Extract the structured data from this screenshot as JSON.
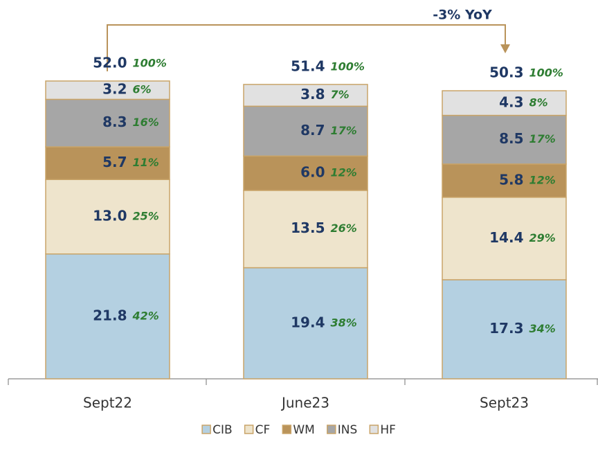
{
  "chart_data": {
    "type": "stacked_bar",
    "annotation": "-3% YoY",
    "categories": [
      "Sept22",
      "June23",
      "Sept23"
    ],
    "totals": [
      52.0,
      51.4,
      50.3
    ],
    "total_labels": [
      "52.0",
      "51.4",
      "50.3"
    ],
    "total_share_labels": [
      "100%",
      "100%",
      "100%"
    ],
    "series": [
      {
        "name": "CIB",
        "color": "#b4d0e1",
        "values": [
          21.8,
          19.4,
          17.3
        ],
        "value_labels": [
          "21.8",
          "19.4",
          "17.3"
        ],
        "share_labels": [
          "42%",
          "38%",
          "34%"
        ]
      },
      {
        "name": "CF",
        "color": "#eee4cc",
        "values": [
          13.0,
          13.5,
          14.4
        ],
        "value_labels": [
          "13.0",
          "13.5",
          "14.4"
        ],
        "share_labels": [
          "25%",
          "26%",
          "29%"
        ]
      },
      {
        "name": "WM",
        "color": "#b9935a",
        "values": [
          5.7,
          6.0,
          5.8
        ],
        "value_labels": [
          "5.7",
          "6.0",
          "5.8"
        ],
        "share_labels": [
          "11%",
          "12%",
          "12%"
        ]
      },
      {
        "name": "INS",
        "color": "#a6a6a6",
        "values": [
          8.3,
          8.7,
          8.5
        ],
        "value_labels": [
          "8.3",
          "8.7",
          "8.5"
        ],
        "share_labels": [
          "16%",
          "17%",
          "17%"
        ]
      },
      {
        "name": "HF",
        "color": "#e1e1e1",
        "values": [
          3.2,
          3.8,
          4.3
        ],
        "value_labels": [
          "3.2",
          "3.8",
          "4.3"
        ],
        "share_labels": [
          "6%",
          "7%",
          "8%"
        ]
      }
    ]
  }
}
